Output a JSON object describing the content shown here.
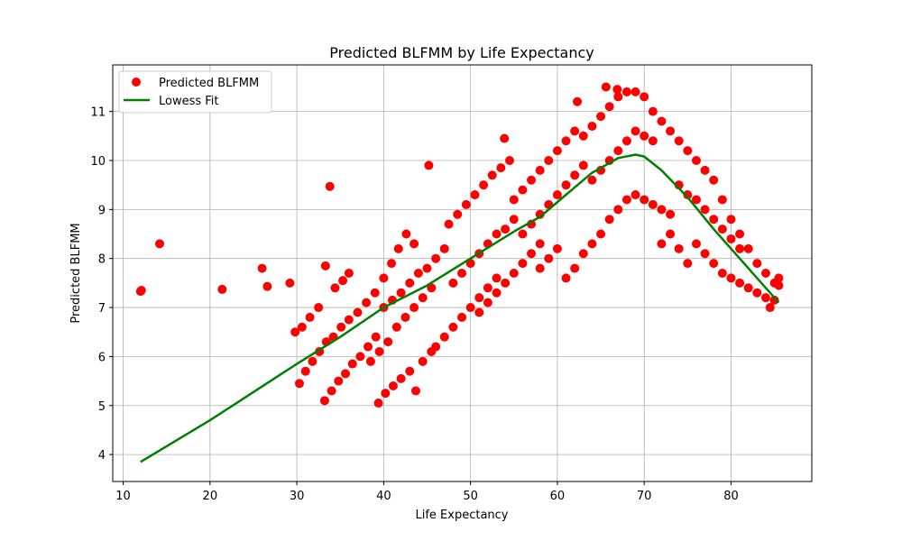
{
  "chart_data": {
    "type": "scatter",
    "title": "Predicted BLFMM by Life Expectancy",
    "xlabel": "Life Expectancy",
    "ylabel": "Predicted BLFMM",
    "xlim": [
      8.8,
      89.3
    ],
    "ylim": [
      3.45,
      11.95
    ],
    "x_ticks": [
      10,
      20,
      30,
      40,
      50,
      60,
      70,
      80
    ],
    "y_ticks": [
      4,
      5,
      6,
      7,
      8,
      9,
      10,
      11
    ],
    "grid": true,
    "legend_position": "top-left",
    "series": [
      {
        "name": "Predicted BLFMM",
        "kind": "scatter",
        "color": "#ff0000",
        "note_points": "sampled representative points",
        "points": [
          [
            12.0,
            7.33
          ],
          [
            12.1,
            7.35
          ],
          [
            14.2,
            8.3
          ],
          [
            21.4,
            7.37
          ],
          [
            26.0,
            7.8
          ],
          [
            26.6,
            7.43
          ],
          [
            29.2,
            7.5
          ],
          [
            33.8,
            9.47
          ],
          [
            45.2,
            9.9
          ],
          [
            53.9,
            10.45
          ],
          [
            62.3,
            11.2
          ],
          [
            65.6,
            11.5
          ],
          [
            66.9,
            11.45
          ],
          [
            29.8,
            6.5
          ],
          [
            30.6,
            6.6
          ],
          [
            31.5,
            6.8
          ],
          [
            32.5,
            7.0
          ],
          [
            33.3,
            7.85
          ],
          [
            34.4,
            7.4
          ],
          [
            35.3,
            7.55
          ],
          [
            36.0,
            7.7
          ],
          [
            30.3,
            5.45
          ],
          [
            31.0,
            5.7
          ],
          [
            31.8,
            5.9
          ],
          [
            32.6,
            6.1
          ],
          [
            33.4,
            6.3
          ],
          [
            34.2,
            6.4
          ],
          [
            35.1,
            6.6
          ],
          [
            36.0,
            6.75
          ],
          [
            33.2,
            5.1
          ],
          [
            34.0,
            5.3
          ],
          [
            34.8,
            5.5
          ],
          [
            35.6,
            5.65
          ],
          [
            36.4,
            5.85
          ],
          [
            37.3,
            6.0
          ],
          [
            38.2,
            6.2
          ],
          [
            39.1,
            6.4
          ],
          [
            37.0,
            6.9
          ],
          [
            38.0,
            7.1
          ],
          [
            39.0,
            7.3
          ],
          [
            40.0,
            7.6
          ],
          [
            40.9,
            7.9
          ],
          [
            41.7,
            8.2
          ],
          [
            42.6,
            8.5
          ],
          [
            43.5,
            8.3
          ],
          [
            39.4,
            5.05
          ],
          [
            40.2,
            5.25
          ],
          [
            41.1,
            5.4
          ],
          [
            42.0,
            5.55
          ],
          [
            43.0,
            5.7
          ],
          [
            43.7,
            5.3
          ],
          [
            44.5,
            5.9
          ],
          [
            45.5,
            6.1
          ],
          [
            38.5,
            5.9
          ],
          [
            39.5,
            6.1
          ],
          [
            40.5,
            6.3
          ],
          [
            41.5,
            6.6
          ],
          [
            42.5,
            6.8
          ],
          [
            43.5,
            7.0
          ],
          [
            44.5,
            7.2
          ],
          [
            45.5,
            7.4
          ],
          [
            40.0,
            7.0
          ],
          [
            41.0,
            7.15
          ],
          [
            42.0,
            7.3
          ],
          [
            43.0,
            7.5
          ],
          [
            44.0,
            7.7
          ],
          [
            45.0,
            7.8
          ],
          [
            46.0,
            8.0
          ],
          [
            47.0,
            8.2
          ],
          [
            46.0,
            6.2
          ],
          [
            47.0,
            6.4
          ],
          [
            48.0,
            6.6
          ],
          [
            49.0,
            6.8
          ],
          [
            50.0,
            7.0
          ],
          [
            51.0,
            7.2
          ],
          [
            52.0,
            7.4
          ],
          [
            53.0,
            7.6
          ],
          [
            47.5,
            8.7
          ],
          [
            48.5,
            8.9
          ],
          [
            49.5,
            9.1
          ],
          [
            50.5,
            9.3
          ],
          [
            51.5,
            9.5
          ],
          [
            52.5,
            9.7
          ],
          [
            53.5,
            9.85
          ],
          [
            54.5,
            10.0
          ],
          [
            48.0,
            7.5
          ],
          [
            49.0,
            7.7
          ],
          [
            50.0,
            7.9
          ],
          [
            51.0,
            8.1
          ],
          [
            52.0,
            8.3
          ],
          [
            53.0,
            8.5
          ],
          [
            54.0,
            8.6
          ],
          [
            55.0,
            8.8
          ],
          [
            51.0,
            6.9
          ],
          [
            52.0,
            7.1
          ],
          [
            53.0,
            7.3
          ],
          [
            54.0,
            7.5
          ],
          [
            55.0,
            7.7
          ],
          [
            56.0,
            7.9
          ],
          [
            57.0,
            8.1
          ],
          [
            58.0,
            8.3
          ],
          [
            55.0,
            9.2
          ],
          [
            56.0,
            9.4
          ],
          [
            57.0,
            9.6
          ],
          [
            58.0,
            9.8
          ],
          [
            59.0,
            10.0
          ],
          [
            60.0,
            10.2
          ],
          [
            61.0,
            10.4
          ],
          [
            62.0,
            10.6
          ],
          [
            56.0,
            8.5
          ],
          [
            57.0,
            8.7
          ],
          [
            58.0,
            8.9
          ],
          [
            59.0,
            9.1
          ],
          [
            60.0,
            9.3
          ],
          [
            61.0,
            9.5
          ],
          [
            62.0,
            9.7
          ],
          [
            63.0,
            9.9
          ],
          [
            58.0,
            7.8
          ],
          [
            59.0,
            8.0
          ],
          [
            60.0,
            8.2
          ],
          [
            61.0,
            7.6
          ],
          [
            62.0,
            7.8
          ],
          [
            63.0,
            8.1
          ],
          [
            64.0,
            8.3
          ],
          [
            65.0,
            8.5
          ],
          [
            63.0,
            10.5
          ],
          [
            64.0,
            10.7
          ],
          [
            65.0,
            10.9
          ],
          [
            66.0,
            11.1
          ],
          [
            67.0,
            11.3
          ],
          [
            68.0,
            11.4
          ],
          [
            69.0,
            11.4
          ],
          [
            70.0,
            11.3
          ],
          [
            64.0,
            9.6
          ],
          [
            65.0,
            9.8
          ],
          [
            66.0,
            10.0
          ],
          [
            67.0,
            10.2
          ],
          [
            68.0,
            10.4
          ],
          [
            69.0,
            10.6
          ],
          [
            70.0,
            10.5
          ],
          [
            71.0,
            10.4
          ],
          [
            66.0,
            8.8
          ],
          [
            67.0,
            9.0
          ],
          [
            68.0,
            9.2
          ],
          [
            69.0,
            9.3
          ],
          [
            70.0,
            9.2
          ],
          [
            71.0,
            9.1
          ],
          [
            72.0,
            9.0
          ],
          [
            73.0,
            8.9
          ],
          [
            71.0,
            11.0
          ],
          [
            72.0,
            10.8
          ],
          [
            73.0,
            10.6
          ],
          [
            74.0,
            10.4
          ],
          [
            75.0,
            10.2
          ],
          [
            76.0,
            10.0
          ],
          [
            77.0,
            9.8
          ],
          [
            78.0,
            9.6
          ],
          [
            72.0,
            8.3
          ],
          [
            73.0,
            8.5
          ],
          [
            74.0,
            8.2
          ],
          [
            75.0,
            7.9
          ],
          [
            76.0,
            8.3
          ],
          [
            77.0,
            8.1
          ],
          [
            78.0,
            7.9
          ],
          [
            79.0,
            7.7
          ],
          [
            74.0,
            9.5
          ],
          [
            75.0,
            9.3
          ],
          [
            76.0,
            9.2
          ],
          [
            77.0,
            9.0
          ],
          [
            78.0,
            8.8
          ],
          [
            79.0,
            8.6
          ],
          [
            80.0,
            8.4
          ],
          [
            81.0,
            8.2
          ],
          [
            79.0,
            9.2
          ],
          [
            80.0,
            8.8
          ],
          [
            81.0,
            8.5
          ],
          [
            82.0,
            8.2
          ],
          [
            83.0,
            7.9
          ],
          [
            84.0,
            7.7
          ],
          [
            85.0,
            7.5
          ],
          [
            85.5,
            7.45
          ],
          [
            80.0,
            7.6
          ],
          [
            81.0,
            7.5
          ],
          [
            82.0,
            7.4
          ],
          [
            83.0,
            7.3
          ],
          [
            84.0,
            7.2
          ],
          [
            85.0,
            7.15
          ],
          [
            85.5,
            7.6
          ],
          [
            84.5,
            7.0
          ]
        ]
      },
      {
        "name": "Lowess Fit",
        "kind": "line",
        "color": "#008000",
        "points": [
          [
            12.0,
            3.85
          ],
          [
            20.0,
            4.7
          ],
          [
            30.0,
            5.85
          ],
          [
            35.0,
            6.4
          ],
          [
            40.0,
            7.0
          ],
          [
            45.0,
            7.45
          ],
          [
            50.0,
            8.0
          ],
          [
            55.0,
            8.55
          ],
          [
            58.0,
            8.85
          ],
          [
            61.0,
            9.3
          ],
          [
            64.0,
            9.75
          ],
          [
            67.0,
            10.05
          ],
          [
            69.0,
            10.12
          ],
          [
            70.0,
            10.08
          ],
          [
            72.0,
            9.8
          ],
          [
            75.0,
            9.25
          ],
          [
            78.0,
            8.6
          ],
          [
            81.0,
            8.0
          ],
          [
            83.0,
            7.6
          ],
          [
            85.5,
            7.1
          ]
        ]
      }
    ]
  }
}
